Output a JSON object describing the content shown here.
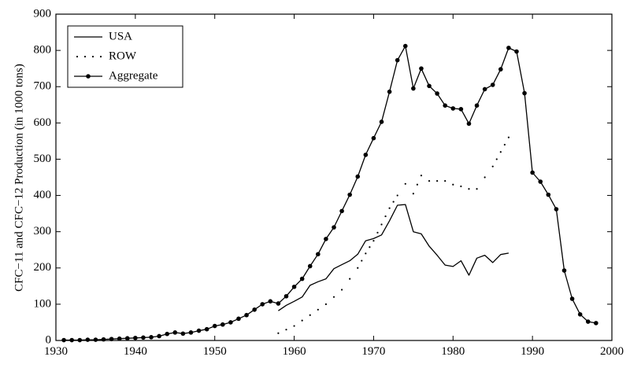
{
  "chart_data": {
    "type": "line",
    "ylabel": "CFC−11 and CFC−12 Production (in 1000 tons)",
    "xlabel": "",
    "xlim": [
      1930,
      2000
    ],
    "ylim": [
      0,
      900
    ],
    "x_ticks": [
      1930,
      1940,
      1950,
      1960,
      1970,
      1980,
      1990,
      2000
    ],
    "x_tick_labels": [
      "1930",
      "1940",
      "1950",
      "1960",
      "1970",
      "1980",
      "1990",
      "2000"
    ],
    "y_ticks": [
      0,
      100,
      200,
      300,
      400,
      500,
      600,
      700,
      800,
      900
    ],
    "y_tick_labels": [
      "0",
      "100",
      "200",
      "300",
      "400",
      "500",
      "600",
      "700",
      "800",
      "900"
    ],
    "legend_position": "top-left",
    "grid": false,
    "series": [
      {
        "name": "USA",
        "style": "solid",
        "x": [
          1958,
          1959,
          1960,
          1961,
          1962,
          1963,
          1964,
          1965,
          1966,
          1967,
          1968,
          1969,
          1970,
          1971,
          1972,
          1973,
          1974,
          1975,
          1976,
          1977,
          1978,
          1979,
          1980,
          1981,
          1982,
          1983,
          1984,
          1985,
          1986,
          1987
        ],
        "y": [
          82,
          97,
          108,
          120,
          152,
          162,
          170,
          198,
          209,
          220,
          238,
          275,
          281,
          291,
          330,
          373,
          375,
          300,
          294,
          260,
          235,
          208,
          204,
          220,
          180,
          227,
          235,
          215,
          237,
          241
        ]
      },
      {
        "name": "ROW",
        "style": "dotted",
        "x": [
          1958,
          1959,
          1960,
          1961,
          1962,
          1963,
          1964,
          1965,
          1966,
          1967,
          1968,
          1969,
          1970,
          1971,
          1972,
          1973,
          1974,
          1975,
          1976,
          1977,
          1978,
          1979,
          1980,
          1981,
          1982,
          1983,
          1984,
          1985,
          1986,
          1987
        ],
        "y": [
          20,
          30,
          40,
          55,
          70,
          85,
          100,
          120,
          140,
          170,
          200,
          240,
          275,
          320,
          365,
          400,
          432,
          405,
          455,
          440,
          440,
          440,
          430,
          425,
          418,
          418,
          450,
          480,
          520,
          560
        ]
      },
      {
        "name": "Aggregate",
        "style": "solid-dot",
        "x": [
          1931,
          1932,
          1933,
          1934,
          1935,
          1936,
          1937,
          1938,
          1939,
          1940,
          1941,
          1942,
          1943,
          1944,
          1945,
          1946,
          1947,
          1948,
          1949,
          1950,
          1951,
          1952,
          1953,
          1954,
          1955,
          1956,
          1957,
          1958,
          1959,
          1960,
          1961,
          1962,
          1963,
          1964,
          1965,
          1966,
          1967,
          1968,
          1969,
          1970,
          1971,
          1972,
          1973,
          1974,
          1975,
          1976,
          1977,
          1978,
          1979,
          1980,
          1981,
          1982,
          1983,
          1984,
          1985,
          1986,
          1987,
          1988,
          1989,
          1990,
          1991,
          1992,
          1993,
          1994,
          1995,
          1996,
          1997,
          1998
        ],
        "y": [
          1,
          1,
          1,
          2,
          2,
          3,
          4,
          5,
          6,
          7,
          8,
          9,
          12,
          18,
          22,
          19,
          22,
          27,
          31,
          40,
          44,
          50,
          60,
          70,
          85,
          100,
          108,
          102,
          122,
          148,
          170,
          205,
          238,
          280,
          312,
          357,
          402,
          452,
          512,
          558,
          603,
          686,
          773,
          812,
          695,
          750,
          702,
          681,
          648,
          640,
          638,
          598,
          648,
          693,
          705,
          748,
          807,
          797,
          682,
          463,
          438,
          402,
          362,
          193,
          115,
          72,
          52,
          48
        ]
      }
    ]
  }
}
